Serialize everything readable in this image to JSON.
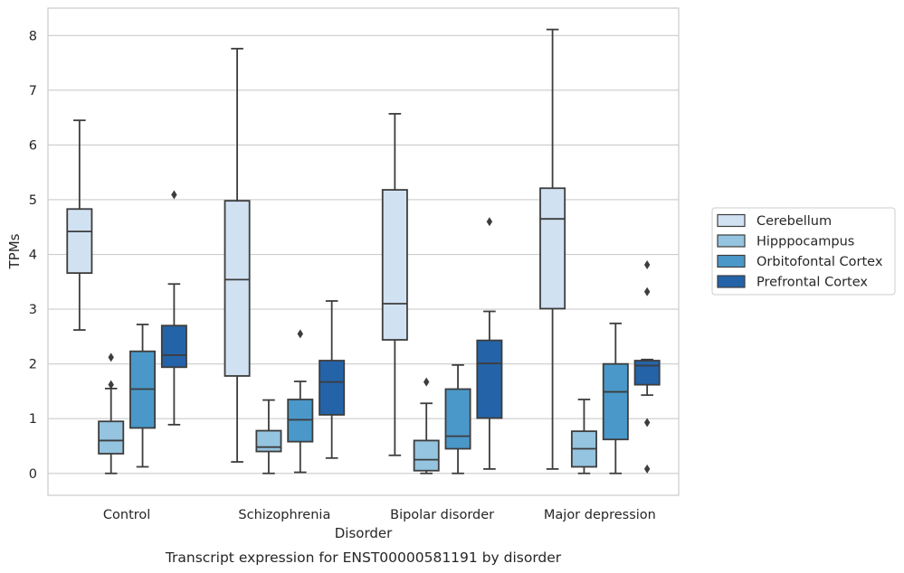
{
  "chart_data": {
    "type": "box",
    "caption": "Transcript expression for ENST00000581191 by disorder",
    "xlabel": "Disorder",
    "ylabel": "TPMs",
    "ylim": [
      -0.4,
      8.5
    ],
    "yticks": [
      0,
      1,
      2,
      3,
      4,
      5,
      6,
      7,
      8
    ],
    "grid": "horizontal",
    "legend_position": "right",
    "categories": [
      "Control",
      "Schizophrenia",
      "Bipolar disorder",
      "Major depression"
    ],
    "series": [
      {
        "name": "Cerebellum",
        "color": "#d0e1f2",
        "boxes": [
          {
            "whislo": 2.62,
            "q1": 3.66,
            "med": 4.42,
            "q3": 4.83,
            "whishi": 6.45,
            "fliers": []
          },
          {
            "whislo": 0.21,
            "q1": 1.78,
            "med": 3.54,
            "q3": 4.98,
            "whishi": 7.76,
            "fliers": []
          },
          {
            "whislo": 0.33,
            "q1": 2.44,
            "med": 3.1,
            "q3": 5.18,
            "whishi": 6.57,
            "fliers": []
          },
          {
            "whislo": 0.08,
            "q1": 3.01,
            "med": 4.65,
            "q3": 5.21,
            "whishi": 8.11,
            "fliers": []
          }
        ]
      },
      {
        "name": "Hipppocampus",
        "color": "#94c4df",
        "boxes": [
          {
            "whislo": 0.0,
            "q1": 0.36,
            "med": 0.6,
            "q3": 0.95,
            "whishi": 1.55,
            "fliers": [
              1.62,
              2.12
            ]
          },
          {
            "whislo": 0.0,
            "q1": 0.4,
            "med": 0.48,
            "q3": 0.78,
            "whishi": 1.34,
            "fliers": []
          },
          {
            "whislo": 0.0,
            "q1": 0.05,
            "med": 0.25,
            "q3": 0.6,
            "whishi": 1.28,
            "fliers": [
              1.67
            ]
          },
          {
            "whislo": 0.0,
            "q1": 0.12,
            "med": 0.45,
            "q3": 0.77,
            "whishi": 1.35,
            "fliers": []
          }
        ]
      },
      {
        "name": "Orbitofontal Cortex",
        "color": "#4a98c9",
        "boxes": [
          {
            "whislo": 0.12,
            "q1": 0.83,
            "med": 1.54,
            "q3": 2.23,
            "whishi": 2.72,
            "fliers": []
          },
          {
            "whislo": 0.02,
            "q1": 0.58,
            "med": 0.98,
            "q3": 1.35,
            "whishi": 1.68,
            "fliers": [
              2.55
            ]
          },
          {
            "whislo": 0.0,
            "q1": 0.45,
            "med": 0.68,
            "q3": 1.54,
            "whishi": 1.98,
            "fliers": []
          },
          {
            "whislo": 0.0,
            "q1": 0.62,
            "med": 1.49,
            "q3": 2.0,
            "whishi": 2.74,
            "fliers": []
          }
        ]
      },
      {
        "name": "Prefrontal Cortex",
        "color": "#2463a8",
        "boxes": [
          {
            "whislo": 0.89,
            "q1": 1.94,
            "med": 2.16,
            "q3": 2.7,
            "whishi": 3.46,
            "fliers": [
              5.09
            ]
          },
          {
            "whislo": 0.28,
            "q1": 1.07,
            "med": 1.67,
            "q3": 2.06,
            "whishi": 3.15,
            "fliers": []
          },
          {
            "whislo": 0.08,
            "q1": 1.01,
            "med": 2.01,
            "q3": 2.43,
            "whishi": 2.96,
            "fliers": [
              4.6
            ]
          },
          {
            "whislo": 1.43,
            "q1": 1.62,
            "med": 1.97,
            "q3": 2.06,
            "whishi": 2.08,
            "fliers": [
              0.08,
              0.93,
              3.32,
              3.81
            ]
          }
        ]
      }
    ]
  }
}
